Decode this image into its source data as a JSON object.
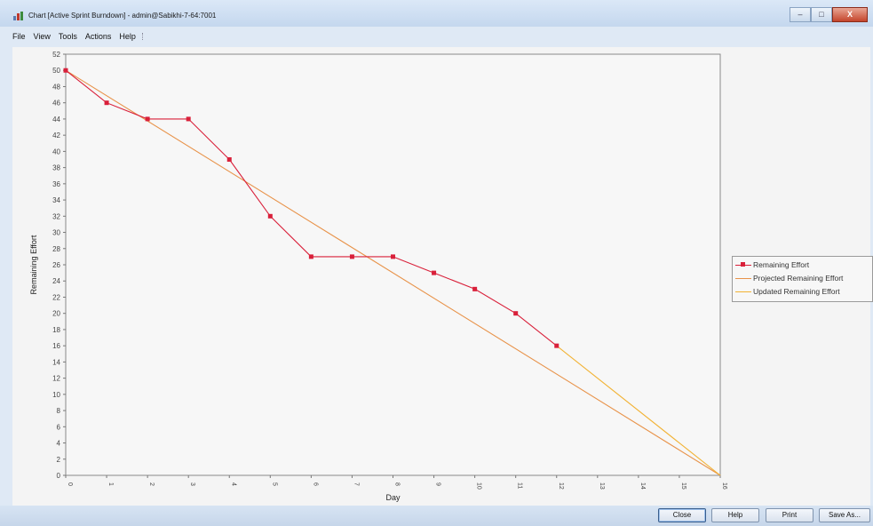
{
  "window": {
    "title": "Chart [Active Sprint Burndown] - admin@Sabikhi-7-64:7001",
    "controls": [
      "–",
      "□",
      "X"
    ]
  },
  "menu": [
    "File",
    "View",
    "Tools",
    "Actions",
    "Help"
  ],
  "buttons": {
    "close": "Close",
    "help": "Help",
    "print": "Print",
    "save_as": "Save As..."
  },
  "chart_data": {
    "type": "line",
    "title": "",
    "xlabel": "Day",
    "ylabel": "Remaining Effort",
    "xlim": [
      0,
      16
    ],
    "ylim": [
      0,
      52
    ],
    "x_ticks": [
      0,
      1,
      2,
      3,
      4,
      5,
      6,
      7,
      8,
      9,
      10,
      11,
      12,
      13,
      14,
      15,
      16
    ],
    "y_ticks": [
      0,
      2,
      4,
      6,
      8,
      10,
      12,
      14,
      16,
      18,
      20,
      22,
      24,
      26,
      28,
      30,
      32,
      34,
      36,
      38,
      40,
      42,
      44,
      46,
      48,
      50,
      52
    ],
    "grid": false,
    "legend_position": "right",
    "series": [
      {
        "name": "Remaining Effort",
        "color": "#d9203a",
        "marker": "square",
        "x": [
          0,
          1,
          2,
          3,
          4,
          5,
          6,
          7,
          8,
          9,
          10,
          11,
          12
        ],
        "y": [
          50,
          46,
          44,
          44,
          39,
          32,
          27,
          27,
          27,
          25,
          23,
          20,
          16
        ]
      },
      {
        "name": "Projected Remaining Effort",
        "color": "#e8934a",
        "marker": "none",
        "x": [
          0,
          16
        ],
        "y": [
          50,
          0
        ]
      },
      {
        "name": "Updated Remaining Effort",
        "color": "#f2b233",
        "marker": "none",
        "x": [
          12,
          16
        ],
        "y": [
          16,
          0
        ]
      }
    ]
  }
}
